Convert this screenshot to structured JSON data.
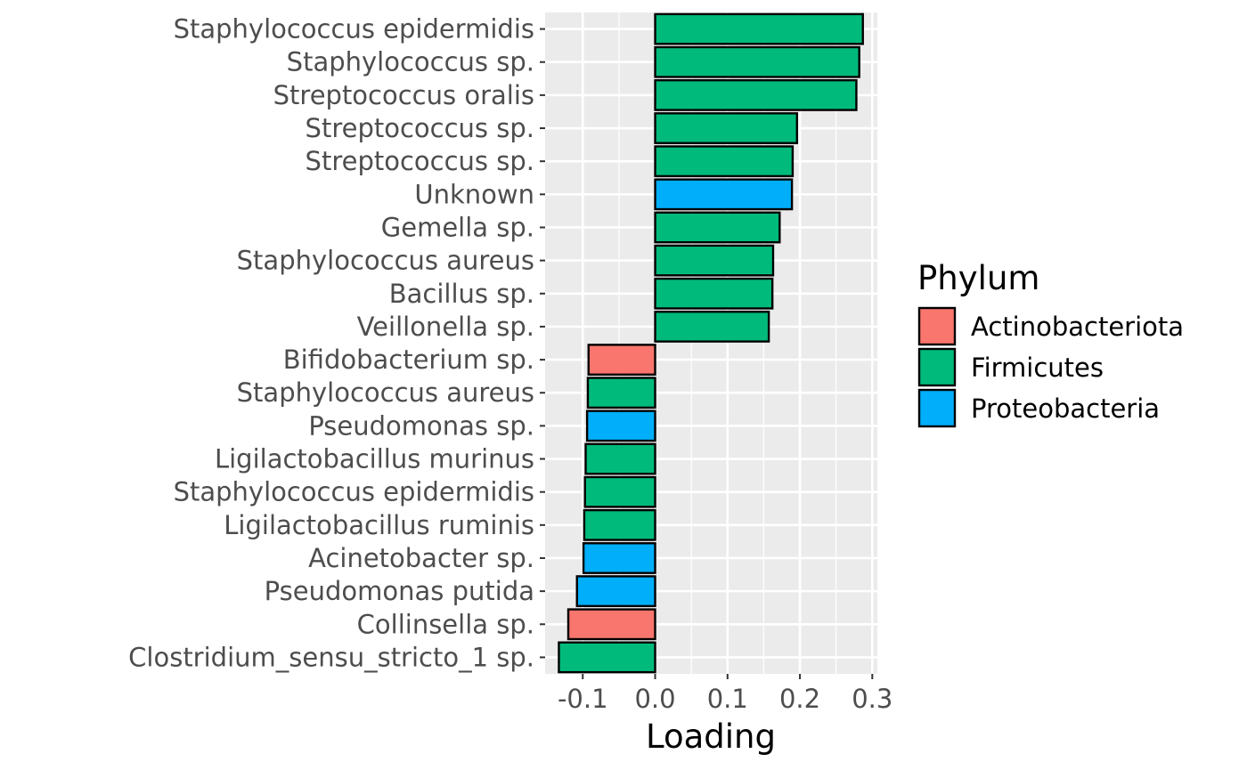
{
  "chart_data": {
    "type": "bar",
    "orientation": "horizontal",
    "title": "",
    "xlabel": "Loading",
    "ylabel": "",
    "xlim": [
      -0.152,
      0.307
    ],
    "xticks": [
      -0.1,
      0.0,
      0.1,
      0.2,
      0.3
    ],
    "xtick_labels": [
      "-0.1",
      "0.0",
      "0.1",
      "0.2",
      "0.3"
    ],
    "grid": true,
    "legend_position": "right",
    "legend_title": "Phylum",
    "legend": [
      {
        "name": "Actinobacteriota",
        "color": "#F8766D"
      },
      {
        "name": "Firmicutes",
        "color": "#00BA7C"
      },
      {
        "name": "Proteobacteria",
        "color": "#00AEFA"
      }
    ],
    "bars": [
      {
        "label": "Staphylococcus epidermidis",
        "value": 0.287,
        "phylum": "Firmicutes"
      },
      {
        "label": "Staphylococcus sp.",
        "value": 0.282,
        "phylum": "Firmicutes"
      },
      {
        "label": "Streptococcus oralis",
        "value": 0.278,
        "phylum": "Firmicutes"
      },
      {
        "label": "Streptococcus sp.",
        "value": 0.196,
        "phylum": "Firmicutes"
      },
      {
        "label": "Streptococcus sp.",
        "value": 0.19,
        "phylum": "Firmicutes"
      },
      {
        "label": "Unknown",
        "value": 0.189,
        "phylum": "Proteobacteria"
      },
      {
        "label": "Gemella sp.",
        "value": 0.172,
        "phylum": "Firmicutes"
      },
      {
        "label": "Staphylococcus aureus",
        "value": 0.163,
        "phylum": "Firmicutes"
      },
      {
        "label": "Bacillus sp.",
        "value": 0.162,
        "phylum": "Firmicutes"
      },
      {
        "label": "Veillonella sp.",
        "value": 0.157,
        "phylum": "Firmicutes"
      },
      {
        "label": "Bifidobacterium sp.",
        "value": -0.092,
        "phylum": "Actinobacteriota"
      },
      {
        "label": "Staphylococcus aureus",
        "value": -0.093,
        "phylum": "Firmicutes"
      },
      {
        "label": "Pseudomonas sp.",
        "value": -0.094,
        "phylum": "Proteobacteria"
      },
      {
        "label": "Ligilactobacillus murinus",
        "value": -0.096,
        "phylum": "Firmicutes"
      },
      {
        "label": "Staphylococcus epidermidis",
        "value": -0.097,
        "phylum": "Firmicutes"
      },
      {
        "label": "Ligilactobacillus ruminis",
        "value": -0.098,
        "phylum": "Firmicutes"
      },
      {
        "label": "Acinetobacter sp.",
        "value": -0.099,
        "phylum": "Proteobacteria"
      },
      {
        "label": "Pseudomonas putida",
        "value": -0.108,
        "phylum": "Proteobacteria"
      },
      {
        "label": "Collinsella sp.",
        "value": -0.12,
        "phylum": "Actinobacteriota"
      },
      {
        "label": "Clostridium_sensu_stricto_1 sp.",
        "value": -0.133,
        "phylum": "Firmicutes"
      }
    ]
  }
}
